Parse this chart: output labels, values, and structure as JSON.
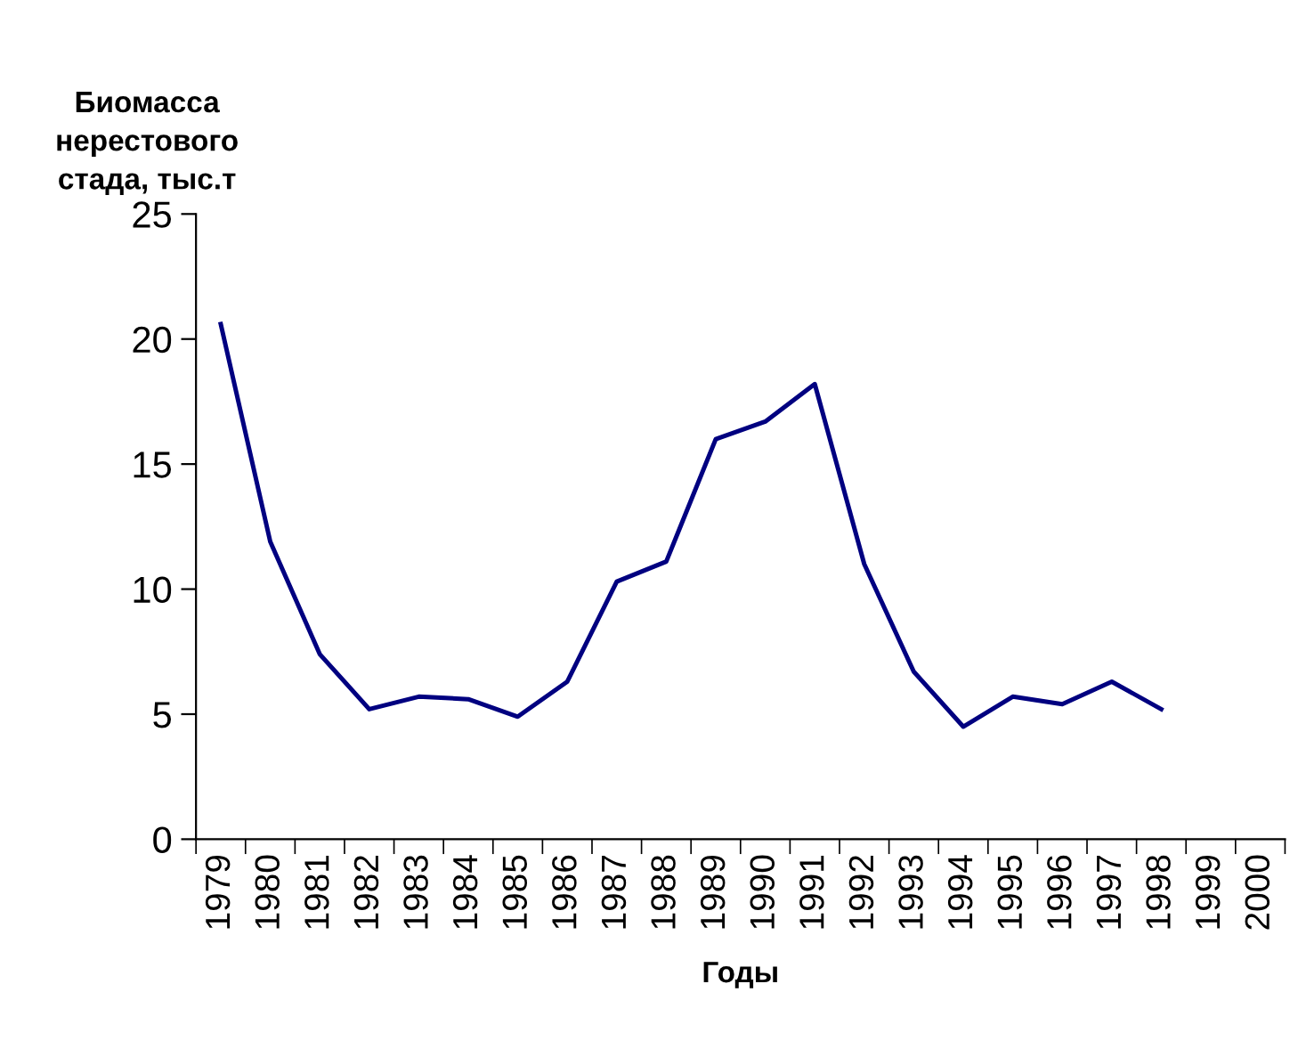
{
  "chart_data": {
    "type": "line",
    "ylabel": "Биомасса\nнерестового\nстада, тыс.т",
    "xlabel": "Годы",
    "categories": [
      "1979",
      "1980",
      "1981",
      "1982",
      "1983",
      "1984",
      "1985",
      "1986",
      "1987",
      "1988",
      "1989",
      "1990",
      "1991",
      "1992",
      "1993",
      "1994",
      "1995",
      "1996",
      "1997",
      "1998",
      "1999",
      "2000"
    ],
    "series": [
      {
        "color": "#000080",
        "values": [
          20.6,
          11.9,
          7.4,
          5.2,
          5.7,
          5.6,
          4.9,
          6.3,
          10.3,
          11.1,
          16.0,
          16.7,
          18.2,
          11.0,
          6.7,
          4.5,
          5.7,
          5.4,
          6.3,
          5.2,
          null,
          null
        ]
      }
    ],
    "ylim": [
      0,
      25
    ],
    "yticks": [
      0,
      5,
      10,
      15,
      20,
      25
    ],
    "grid": false,
    "marker": "none",
    "line_style": "solid"
  }
}
